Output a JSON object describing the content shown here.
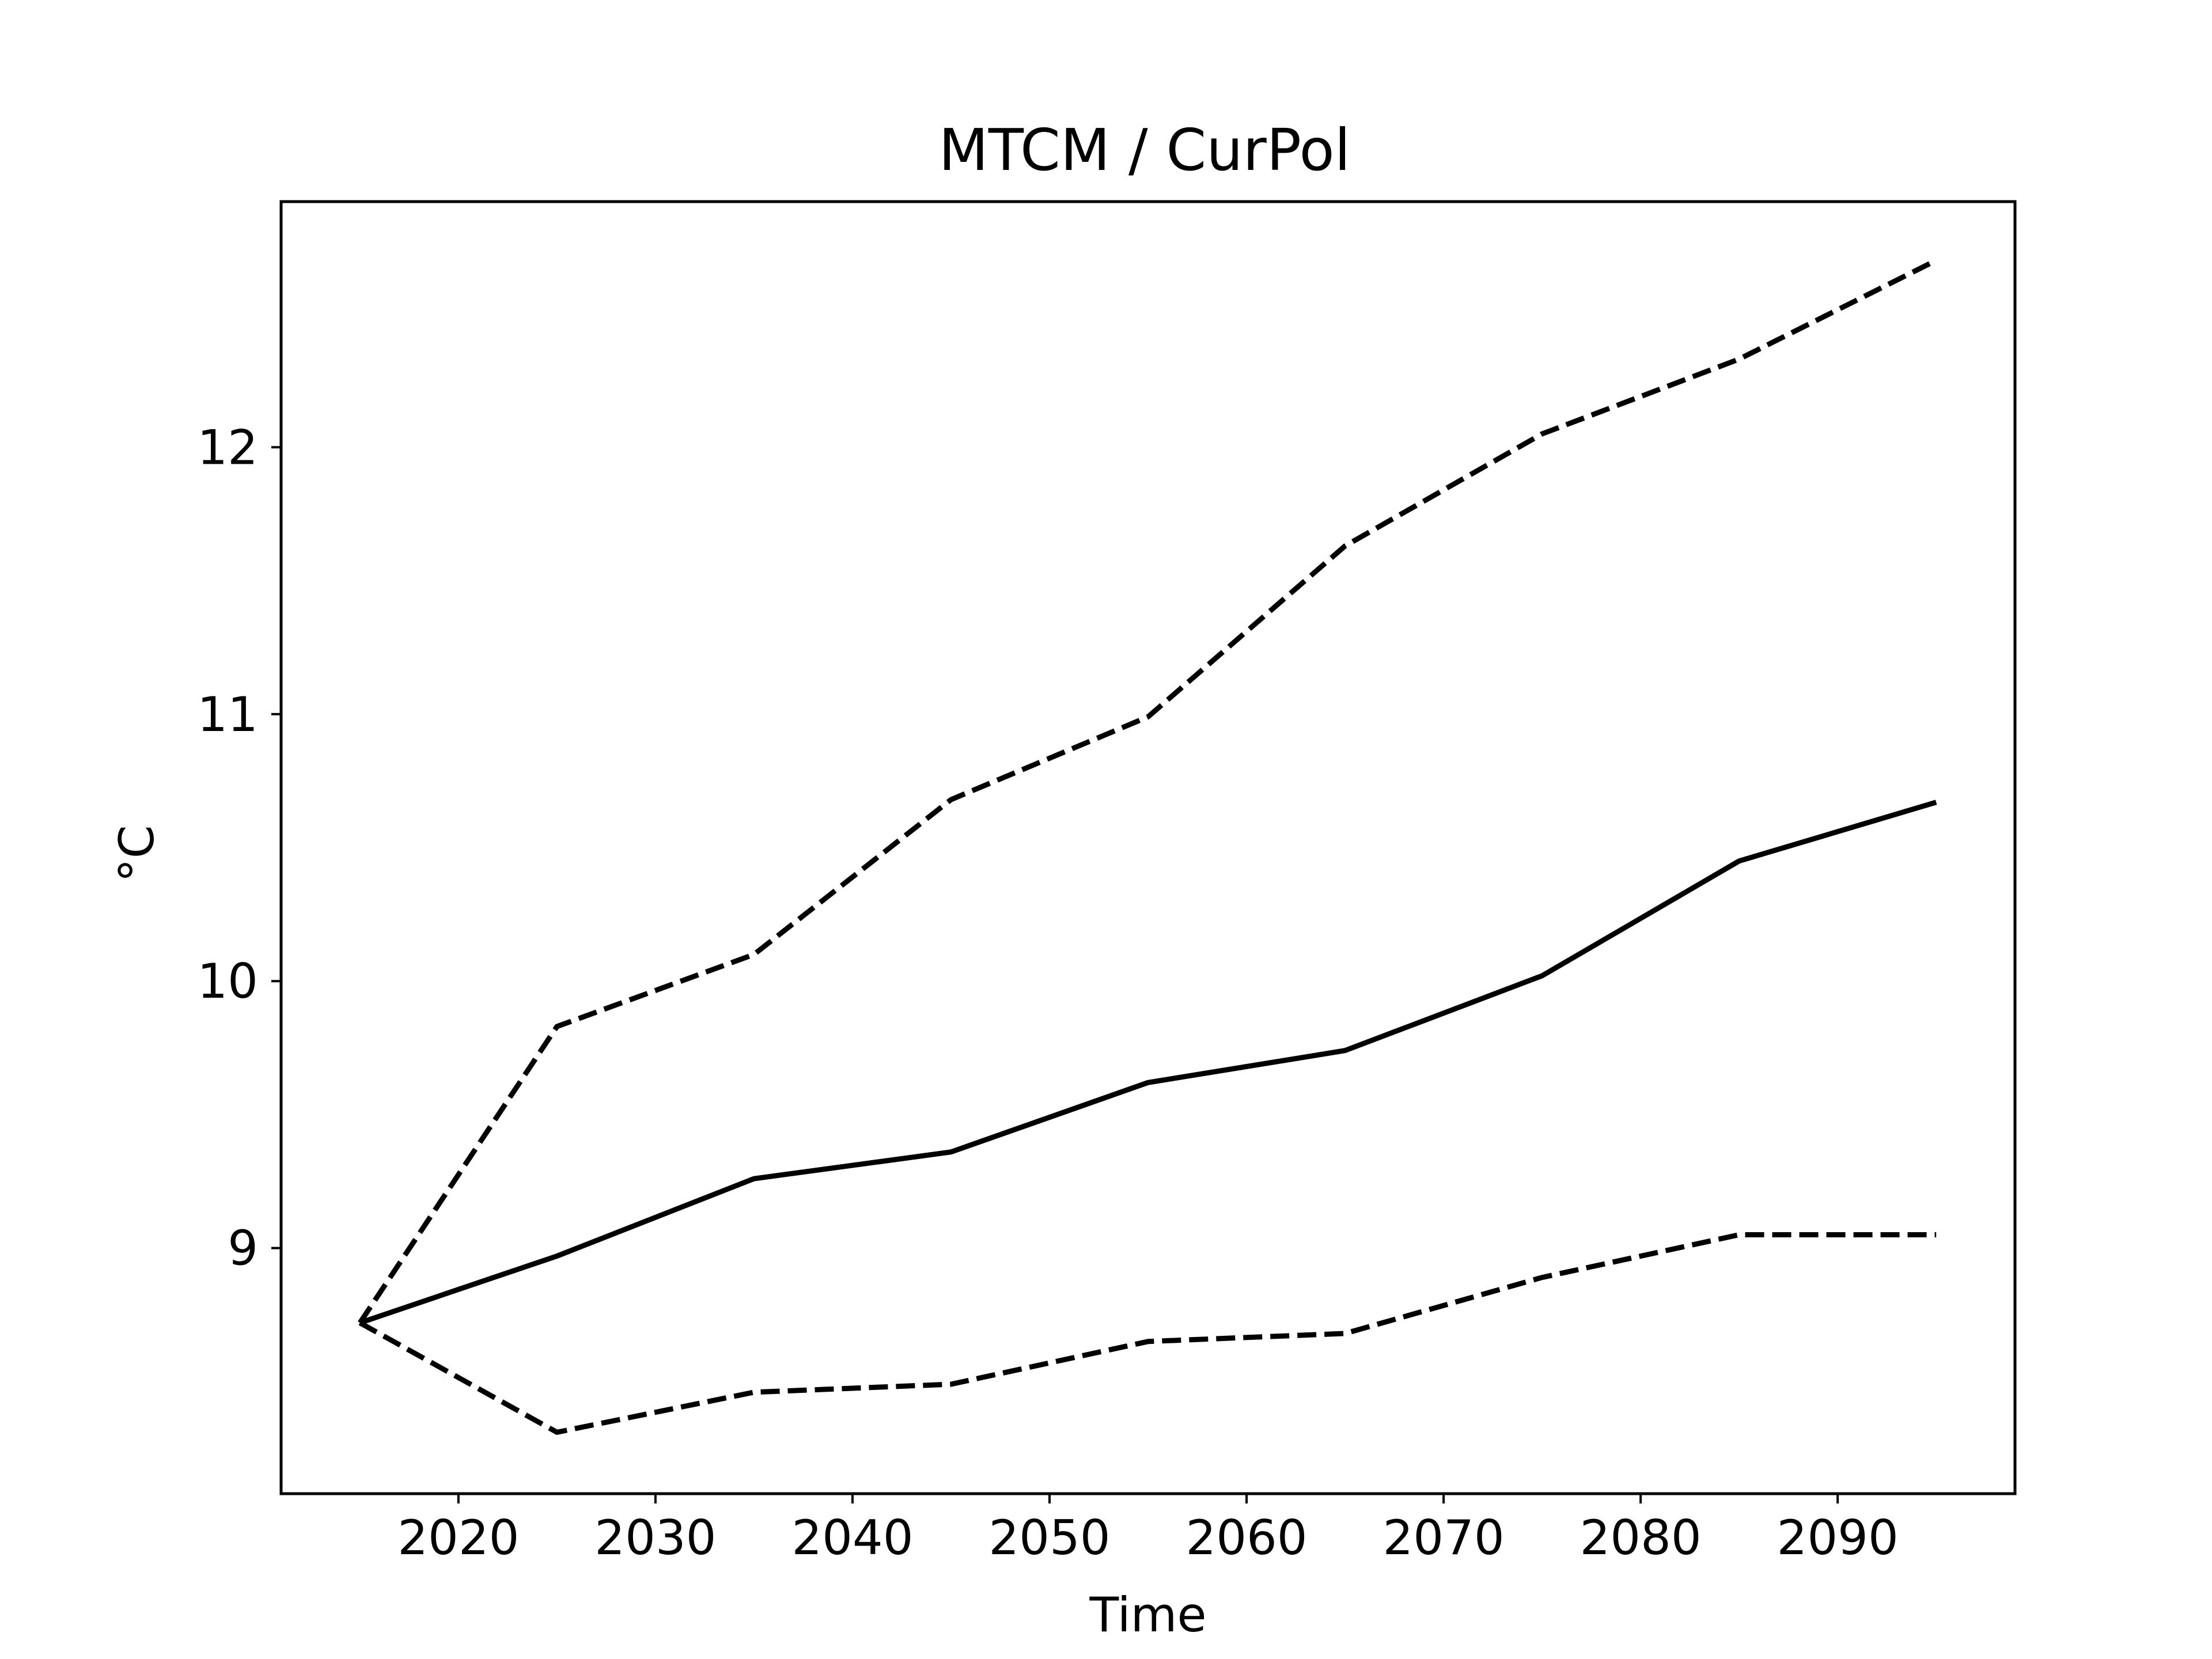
{
  "chart_data": {
    "type": "line",
    "title": "MTCM / CurPol",
    "xlabel": "Time",
    "ylabel": "°C",
    "xlim": [
      2011,
      2099
    ],
    "ylim": [
      8.08,
      12.92
    ],
    "xticks": [
      2020,
      2030,
      2040,
      2050,
      2060,
      2070,
      2080,
      2090
    ],
    "yticks": [
      9,
      10,
      11,
      12
    ],
    "grid": false,
    "legend": "none",
    "x": [
      2015,
      2025,
      2035,
      2045,
      2055,
      2065,
      2075,
      2085,
      2095
    ],
    "series": [
      {
        "style": "solid",
        "color": "#000000",
        "values": [
          8.72,
          8.97,
          9.26,
          9.36,
          9.62,
          9.74,
          10.02,
          10.45,
          10.67
        ]
      },
      {
        "style": "dashed",
        "color": "#000000",
        "values": [
          8.72,
          9.83,
          10.1,
          10.68,
          10.99,
          11.63,
          12.05,
          12.33,
          12.7
        ]
      },
      {
        "style": "dashed",
        "color": "#000000",
        "values": [
          8.72,
          8.31,
          8.46,
          8.49,
          8.65,
          8.68,
          8.89,
          9.05,
          9.05
        ]
      }
    ]
  }
}
